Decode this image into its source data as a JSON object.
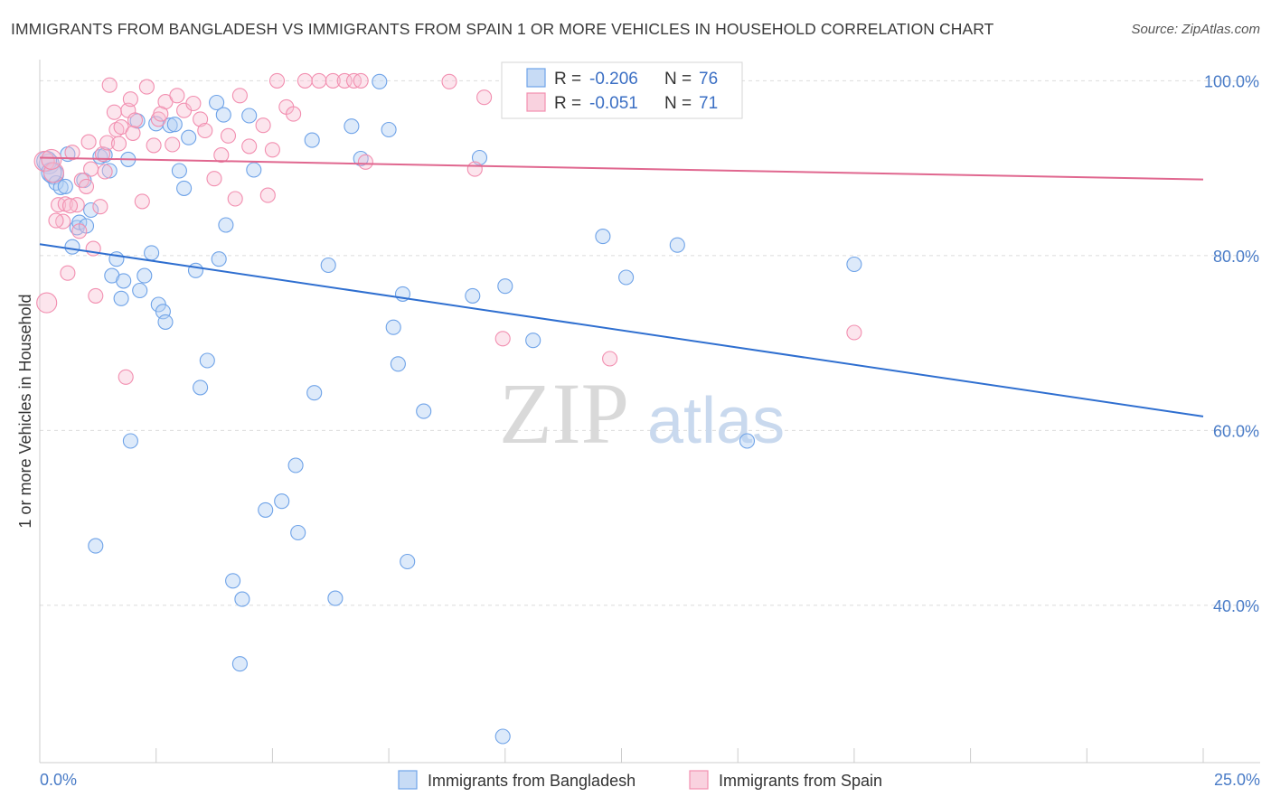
{
  "title": "IMMIGRANTS FROM BANGLADESH VS IMMIGRANTS FROM SPAIN 1 OR MORE VEHICLES IN HOUSEHOLD CORRELATION CHART",
  "source": "Source: ZipAtlas.com",
  "watermark": {
    "zip": "ZIP",
    "atlas": "atlas"
  },
  "legend": {
    "r_label": "R =",
    "n_label": "N =",
    "rows": [
      {
        "r": "-0.206",
        "n": "76",
        "color": "#6fa3e8"
      },
      {
        "r": "-0.051",
        "n": "71",
        "color": "#f28fb0"
      }
    ]
  },
  "chart_data": {
    "type": "scatter",
    "title": "IMMIGRANTS FROM BANGLADESH VS IMMIGRANTS FROM SPAIN 1 OR MORE VEHICLES IN HOUSEHOLD CORRELATION CHART",
    "xlabel": "",
    "ylabel": "1 or more Vehicles in Household",
    "xlim": [
      0,
      25
    ],
    "ylim": [
      22,
      102
    ],
    "x_tick_labels": [
      "0.0%",
      "25.0%"
    ],
    "y_ticks": [
      40,
      60,
      80,
      100
    ],
    "y_tick_labels": [
      "40.0%",
      "60.0%",
      "80.0%",
      "100.0%"
    ],
    "grid": true,
    "legend_position": "top-center",
    "series": [
      {
        "name": "Immigrants from Bangladesh",
        "color": "#6fa3e8",
        "r": -0.206,
        "n": 76,
        "trend": {
          "x": [
            0,
            25
          ],
          "y": [
            81.3,
            61.6
          ]
        },
        "points": [
          [
            0.2,
            90.5
          ],
          [
            0.3,
            89.3
          ],
          [
            0.35,
            88.3
          ],
          [
            0.45,
            87.8
          ],
          [
            0.55,
            87.9
          ],
          [
            0.6,
            91.6
          ],
          [
            0.7,
            81.0
          ],
          [
            0.8,
            83.2
          ],
          [
            0.85,
            83.8
          ],
          [
            1.0,
            83.4
          ],
          [
            1.1,
            85.2
          ],
          [
            0.95,
            88.6
          ],
          [
            1.3,
            91.3
          ],
          [
            1.4,
            91.5
          ],
          [
            1.5,
            89.7
          ],
          [
            1.55,
            77.7
          ],
          [
            1.65,
            79.6
          ],
          [
            1.75,
            75.1
          ],
          [
            1.8,
            77.1
          ],
          [
            1.9,
            91.0
          ],
          [
            2.1,
            95.4
          ],
          [
            2.15,
            76.0
          ],
          [
            2.25,
            77.7
          ],
          [
            2.4,
            80.3
          ],
          [
            2.5,
            95.1
          ],
          [
            2.55,
            74.4
          ],
          [
            2.65,
            73.6
          ],
          [
            2.7,
            72.4
          ],
          [
            2.8,
            94.9
          ],
          [
            2.9,
            95.0
          ],
          [
            3.0,
            89.7
          ],
          [
            3.1,
            87.7
          ],
          [
            3.2,
            93.5
          ],
          [
            3.35,
            78.3
          ],
          [
            3.45,
            64.9
          ],
          [
            3.6,
            68.0
          ],
          [
            3.8,
            97.5
          ],
          [
            3.85,
            79.6
          ],
          [
            3.95,
            96.1
          ],
          [
            4.0,
            83.5
          ],
          [
            4.15,
            42.8
          ],
          [
            4.3,
            33.3
          ],
          [
            4.35,
            40.7
          ],
          [
            4.5,
            96.0
          ],
          [
            4.6,
            89.8
          ],
          [
            4.85,
            50.9
          ],
          [
            5.2,
            51.9
          ],
          [
            5.5,
            56.0
          ],
          [
            5.55,
            48.3
          ],
          [
            5.85,
            93.2
          ],
          [
            5.9,
            64.3
          ],
          [
            6.2,
            78.9
          ],
          [
            6.35,
            40.8
          ],
          [
            6.7,
            94.8
          ],
          [
            6.9,
            91.1
          ],
          [
            7.3,
            99.9
          ],
          [
            7.5,
            94.4
          ],
          [
            7.6,
            71.8
          ],
          [
            7.7,
            67.6
          ],
          [
            7.8,
            75.6
          ],
          [
            7.9,
            45.0
          ],
          [
            8.25,
            62.2
          ],
          [
            9.3,
            75.4
          ],
          [
            9.45,
            91.2
          ],
          [
            9.95,
            25.0
          ],
          [
            10.0,
            76.5
          ],
          [
            10.6,
            70.3
          ],
          [
            12.1,
            82.2
          ],
          [
            12.6,
            77.5
          ],
          [
            13.7,
            81.2
          ],
          [
            15.2,
            58.8
          ],
          [
            17.5,
            79.0
          ],
          [
            1.95,
            58.8
          ],
          [
            1.2,
            46.8
          ],
          [
            0.15,
            90.8
          ],
          [
            0.25,
            89.5
          ]
        ]
      },
      {
        "name": "Immigrants from Spain",
        "color": "#f28fb0",
        "r": -0.051,
        "n": 71,
        "trend": {
          "x": [
            0,
            25
          ],
          "y": [
            91.2,
            88.7
          ]
        },
        "points": [
          [
            0.1,
            90.8
          ],
          [
            0.15,
            74.6
          ],
          [
            0.3,
            89.5
          ],
          [
            0.4,
            85.8
          ],
          [
            0.5,
            83.9
          ],
          [
            0.55,
            85.9
          ],
          [
            0.6,
            78.0
          ],
          [
            0.7,
            91.8
          ],
          [
            0.8,
            85.8
          ],
          [
            0.85,
            82.8
          ],
          [
            0.9,
            88.6
          ],
          [
            1.0,
            87.9
          ],
          [
            1.05,
            93.0
          ],
          [
            1.1,
            89.9
          ],
          [
            1.15,
            80.8
          ],
          [
            1.2,
            75.4
          ],
          [
            1.3,
            85.6
          ],
          [
            1.35,
            91.6
          ],
          [
            1.45,
            92.9
          ],
          [
            1.5,
            99.5
          ],
          [
            1.6,
            96.4
          ],
          [
            1.65,
            94.4
          ],
          [
            1.7,
            92.8
          ],
          [
            1.75,
            94.7
          ],
          [
            1.85,
            66.1
          ],
          [
            1.9,
            96.6
          ],
          [
            1.95,
            97.9
          ],
          [
            2.0,
            94.0
          ],
          [
            2.05,
            95.5
          ],
          [
            2.2,
            86.2
          ],
          [
            2.3,
            99.3
          ],
          [
            2.45,
            92.6
          ],
          [
            2.55,
            95.6
          ],
          [
            2.7,
            97.6
          ],
          [
            2.85,
            92.7
          ],
          [
            2.95,
            98.3
          ],
          [
            3.1,
            96.6
          ],
          [
            3.3,
            97.4
          ],
          [
            3.45,
            95.6
          ],
          [
            3.55,
            94.3
          ],
          [
            3.75,
            88.8
          ],
          [
            3.9,
            91.5
          ],
          [
            4.05,
            93.7
          ],
          [
            4.2,
            86.5
          ],
          [
            4.3,
            98.3
          ],
          [
            4.5,
            92.5
          ],
          [
            4.8,
            94.9
          ],
          [
            4.9,
            86.9
          ],
          [
            5.1,
            100.0
          ],
          [
            5.3,
            97.0
          ],
          [
            5.45,
            96.2
          ],
          [
            5.7,
            100.0
          ],
          [
            6.0,
            100.0
          ],
          [
            6.3,
            100.0
          ],
          [
            6.55,
            100.0
          ],
          [
            6.75,
            100.0
          ],
          [
            7.0,
            90.7
          ],
          [
            8.8,
            99.9
          ],
          [
            9.35,
            89.9
          ],
          [
            9.55,
            98.1
          ],
          [
            9.95,
            70.5
          ],
          [
            11.2,
            100.0
          ],
          [
            12.25,
            68.2
          ],
          [
            17.5,
            71.2
          ],
          [
            0.25,
            91.0
          ],
          [
            0.35,
            84.0
          ],
          [
            1.4,
            89.6
          ],
          [
            2.6,
            96.2
          ],
          [
            5.0,
            92.1
          ],
          [
            0.65,
            85.7
          ],
          [
            6.9,
            100.0
          ]
        ]
      }
    ]
  }
}
